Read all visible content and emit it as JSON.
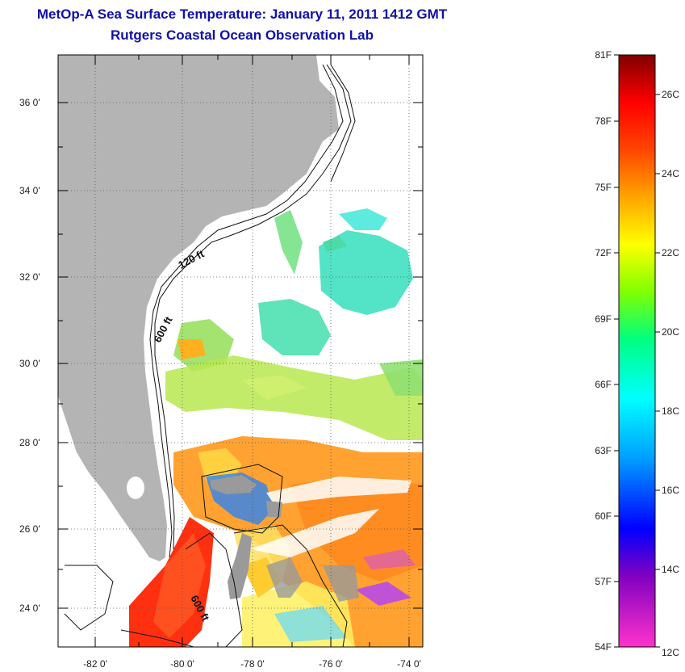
{
  "title": "MetOp-A Sea Surface Temperature:  January 11, 2011 1412 GMT",
  "subtitle": "Rutgers Coastal Ocean Observation Lab",
  "map": {
    "lon_ticks": [
      "-82 0'",
      "-80 0'",
      "-78 0'",
      "-76 0'",
      "-74 0'"
    ],
    "lat_ticks": [
      "36 0'",
      "34 0'",
      "32 0'",
      "30 0'",
      "28 0'",
      "26 0'",
      "24 0'"
    ],
    "contour_labels": [
      "120 ft",
      "600 ft",
      "600 ft"
    ],
    "land_color": "#b4b4b4"
  },
  "colorbar": {
    "fahrenheit": [
      "81F",
      "78F",
      "75F",
      "72F",
      "69F",
      "66F",
      "63F",
      "60F",
      "57F",
      "54F"
    ],
    "celsius": [
      "26C",
      "24C",
      "22C",
      "20C",
      "18C",
      "16C",
      "14C",
      "12C"
    ],
    "colors": [
      "#ff33cc",
      "#8000c0",
      "#0000ff",
      "#00a0ff",
      "#00ffff",
      "#00ff80",
      "#80ff00",
      "#ffff00",
      "#ffa500",
      "#ff4500",
      "#ff0000",
      "#800000"
    ]
  }
}
